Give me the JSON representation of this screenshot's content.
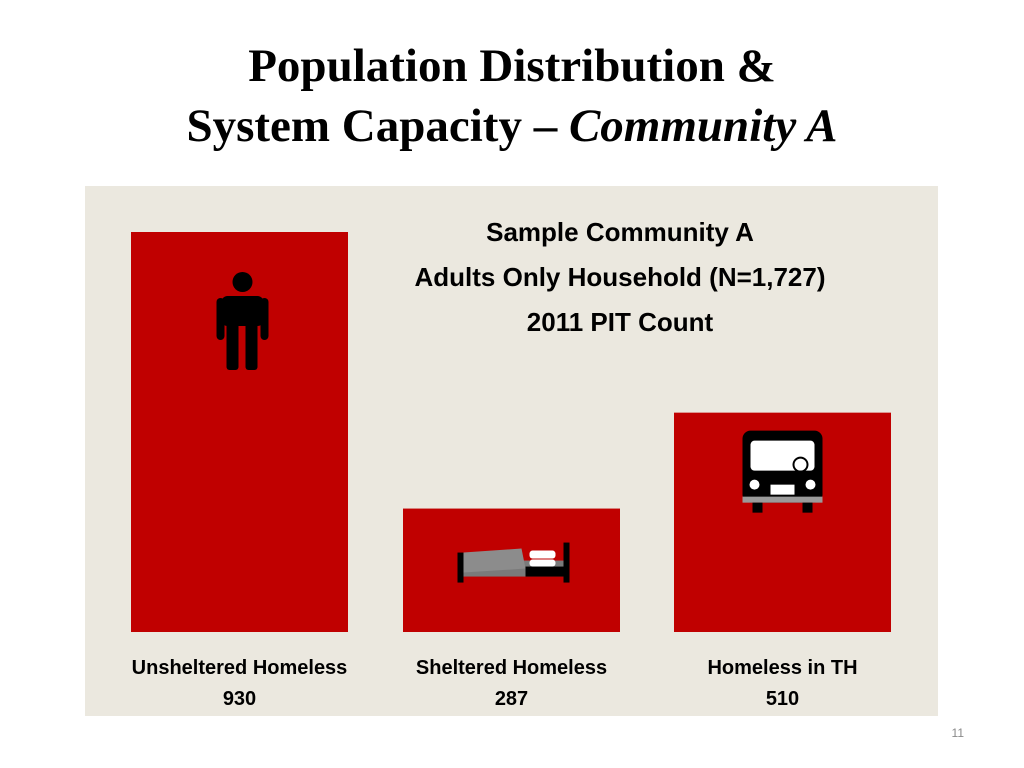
{
  "slide": {
    "title_line1": "Population Distribution &",
    "title_line2_plain": "System Capacity – ",
    "title_line2_italic": "Community A",
    "page_number": "11"
  },
  "colors": {
    "bar": "#c00000",
    "panel_background": "#ebe8df",
    "icon": "#000000"
  },
  "chart_data": {
    "type": "bar",
    "title": [
      "Sample Community A",
      "Adults Only Household (N=1,727)",
      "2011 PIT Count"
    ],
    "categories": [
      "Unsheltered Homeless",
      "Sheltered Homeless",
      "Homeless in TH"
    ],
    "values": [
      930,
      287,
      510
    ],
    "data_labels": [
      "930",
      "287",
      "510"
    ],
    "bar_icons": [
      "person-icon",
      "bed-icon",
      "bus-icon"
    ],
    "xlabel": "",
    "ylabel": "",
    "axes_visible": false,
    "grid": false,
    "legend": "none"
  }
}
